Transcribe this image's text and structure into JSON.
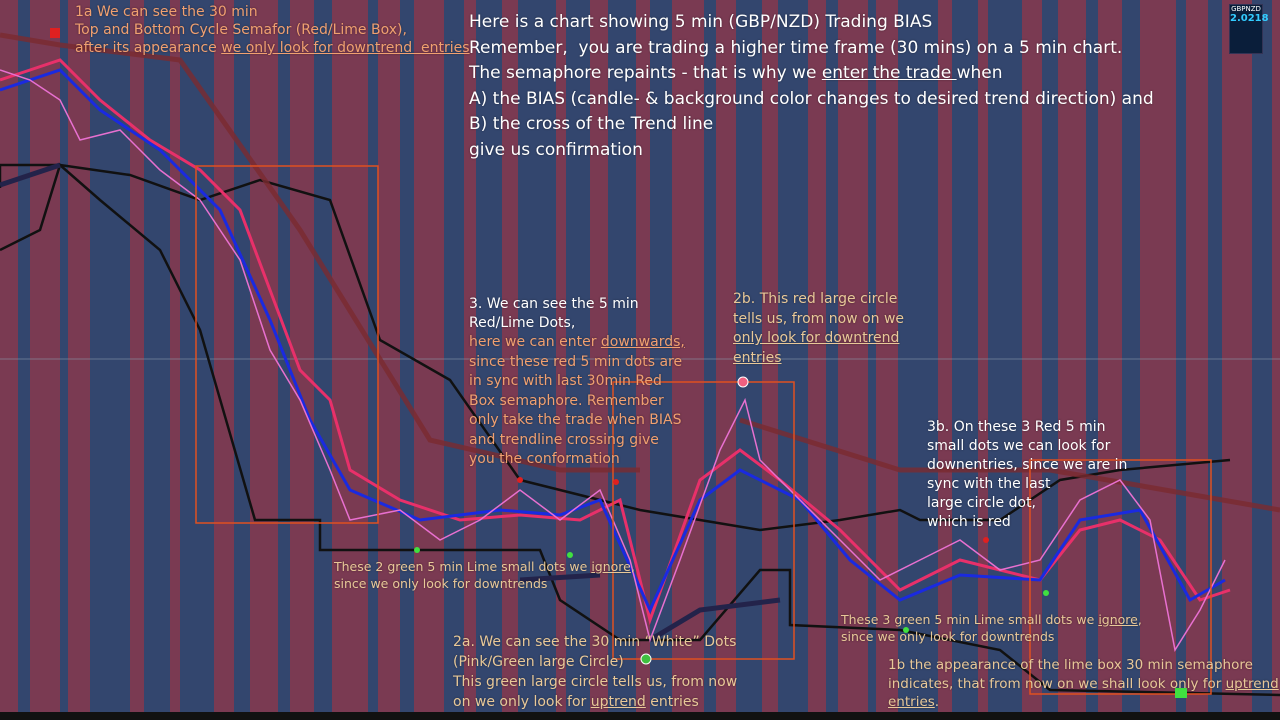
{
  "symbol_panel": {
    "symbol": "GBPNZD",
    "price": "2.0218"
  },
  "annotations": [
    {
      "color": "#f0a070",
      "lines": [
        [
          {
            "text": "1a We can see the 30 min"
          }
        ],
        [
          {
            "text": "Top and Bottom Cycle Semafor (Red/Lime Box),"
          }
        ],
        [
          {
            "text": "after its appearance "
          },
          {
            "text": "we only look for downtrend  entries",
            "underline": true
          }
        ]
      ]
    },
    {
      "color": "#ffffff",
      "lines": [
        [
          {
            "text": "Here is a chart showing 5 min (GBP/NZD) Trading BIAS"
          }
        ],
        [
          {
            "text": "Remember,  you are trading a higher time frame (30 mins) on a 5 min chart."
          }
        ],
        [
          {
            "text": "The semaphore repaints - that is why we "
          },
          {
            "text": "enter the trade ",
            "underline": true
          },
          {
            "text": "when"
          }
        ],
        [
          {
            "text": "A) the BIAS (candle- & background color changes to desired trend direction) and"
          }
        ],
        [
          {
            "text": "B) the cross of the Trend line"
          }
        ],
        [
          {
            "text": "give us confirmation"
          }
        ]
      ]
    },
    {
      "color": "#ffffff",
      "lines": [
        [
          {
            "text": "3. We can see the 5 min"
          }
        ],
        [
          {
            "text": "Red/Lime Dots,"
          }
        ]
      ]
    },
    {
      "color": "#f0a070",
      "lines": [
        [
          {
            "text": "here we can enter "
          },
          {
            "text": "downwards,",
            "underline": true
          }
        ],
        [
          {
            "text": "since these red 5 min dots are"
          }
        ],
        [
          {
            "text": "in sync with last 30min Red"
          }
        ],
        [
          {
            "text": "Box semaphore. Remember"
          }
        ],
        [
          {
            "text": "only take the trade when BIAS"
          }
        ],
        [
          {
            "text": "and trendline crossing give"
          }
        ],
        [
          {
            "text": "you the conformation"
          }
        ]
      ]
    },
    {
      "color": "#e8c898",
      "lines": [
        [
          {
            "text": "2b. This red large circle"
          }
        ],
        [
          {
            "text": "tells us, from now on we"
          }
        ],
        [
          {
            "text": "only look for downtrend",
            "underline": true
          }
        ],
        [
          {
            "text": "entries",
            "underline": true
          }
        ]
      ]
    },
    {
      "color": "#ffffff",
      "lines": [
        [
          {
            "text": "3b. On these 3 Red 5 min"
          }
        ],
        [
          {
            "text": "small dots we can look for"
          }
        ],
        [
          {
            "text": "downentries, since we are in"
          }
        ],
        [
          {
            "text": "sync with the last"
          }
        ],
        [
          {
            "text": "large circle dot,"
          }
        ],
        [
          {
            "text": "which is red"
          }
        ]
      ]
    },
    {
      "color": "#e8c898",
      "lines": [
        [
          {
            "text": "These 2 green 5 min Lime small dots we "
          },
          {
            "text": "ignore",
            "underline": true
          },
          {
            "text": ","
          }
        ],
        [
          {
            "text": "since we only look for downtrends"
          }
        ]
      ]
    },
    {
      "color": "#e8c898",
      "lines": [
        [
          {
            "text": "These 3 green 5 min Lime small dots we "
          },
          {
            "text": "ignore",
            "underline": true
          },
          {
            "text": ","
          }
        ],
        [
          {
            "text": "since we only look for downtrends"
          }
        ]
      ]
    },
    {
      "color": "#e8c898",
      "lines": [
        [
          {
            "text": "2a. We can see the 30 min “White” Dots"
          }
        ],
        [
          {
            "text": "(Pink/Green large Circle)"
          }
        ],
        [
          {
            "text": "This green large circle tells us, from now"
          }
        ],
        [
          {
            "text": "on we only look for "
          },
          {
            "text": "uptrend",
            "underline": true
          },
          {
            "text": " entries"
          }
        ]
      ]
    },
    {
      "color": "#e8c898",
      "lines": [
        [
          {
            "text": "1b the appearance of the lime box 30 min semaphore"
          }
        ],
        [
          {
            "text": "indicates, that from now on we shall look only for "
          },
          {
            "text": "uptrend",
            "underline": true
          }
        ],
        [
          {
            "text": "entries",
            "underline": true
          },
          {
            "text": "."
          }
        ]
      ]
    }
  ]
}
